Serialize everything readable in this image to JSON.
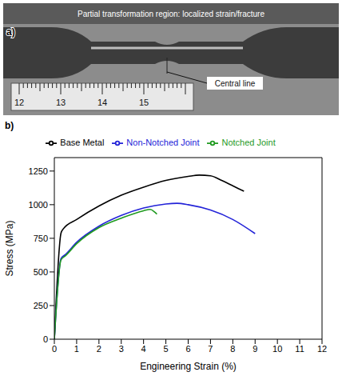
{
  "photo": {
    "panel_label": "a)",
    "annotations": [
      "Partial transformation region: localized strain/fracture",
      "Central line"
    ],
    "ruler_labels": [
      "12",
      "13",
      "14",
      "15"
    ]
  },
  "chart_data": {
    "type": "line",
    "panel_label": "b)",
    "x_label": "Engineering Strain (%)",
    "y_label": "Stress (MPa)",
    "xlim": [
      0,
      12
    ],
    "xticks": [
      0,
      1,
      2,
      3,
      4,
      5,
      6,
      7,
      8,
      9,
      10,
      11,
      12
    ],
    "ylim": [
      0,
      1350
    ],
    "yticks": [
      0,
      250,
      500,
      750,
      1000,
      1250
    ],
    "grid": false,
    "legend": "top",
    "series": [
      {
        "name": "Base Metal",
        "color": "#000000",
        "x": [
          0,
          0.3,
          0.4,
          1,
          2,
          3,
          4,
          5,
          6,
          6.5,
          7,
          7.5,
          8,
          8.5
        ],
        "values": [
          0,
          790,
          820,
          890,
          990,
          1070,
          1130,
          1180,
          1210,
          1220,
          1215,
          1180,
          1140,
          1100
        ]
      },
      {
        "name": "Non-Notched Joint",
        "color": "#2323d8",
        "x": [
          0,
          0.3,
          0.5,
          1,
          2,
          3,
          4,
          5,
          5.5,
          6,
          7,
          8,
          9
        ],
        "values": [
          0,
          600,
          630,
          720,
          840,
          920,
          975,
          1005,
          1010,
          1000,
          960,
          890,
          785
        ]
      },
      {
        "name": "Notched Joint",
        "color": "#1f9a1f",
        "x": [
          0,
          0.3,
          0.5,
          1,
          2,
          3,
          4,
          4.3,
          4.5,
          4.6
        ],
        "values": [
          0,
          590,
          620,
          710,
          830,
          900,
          955,
          965,
          945,
          930
        ]
      }
    ]
  }
}
